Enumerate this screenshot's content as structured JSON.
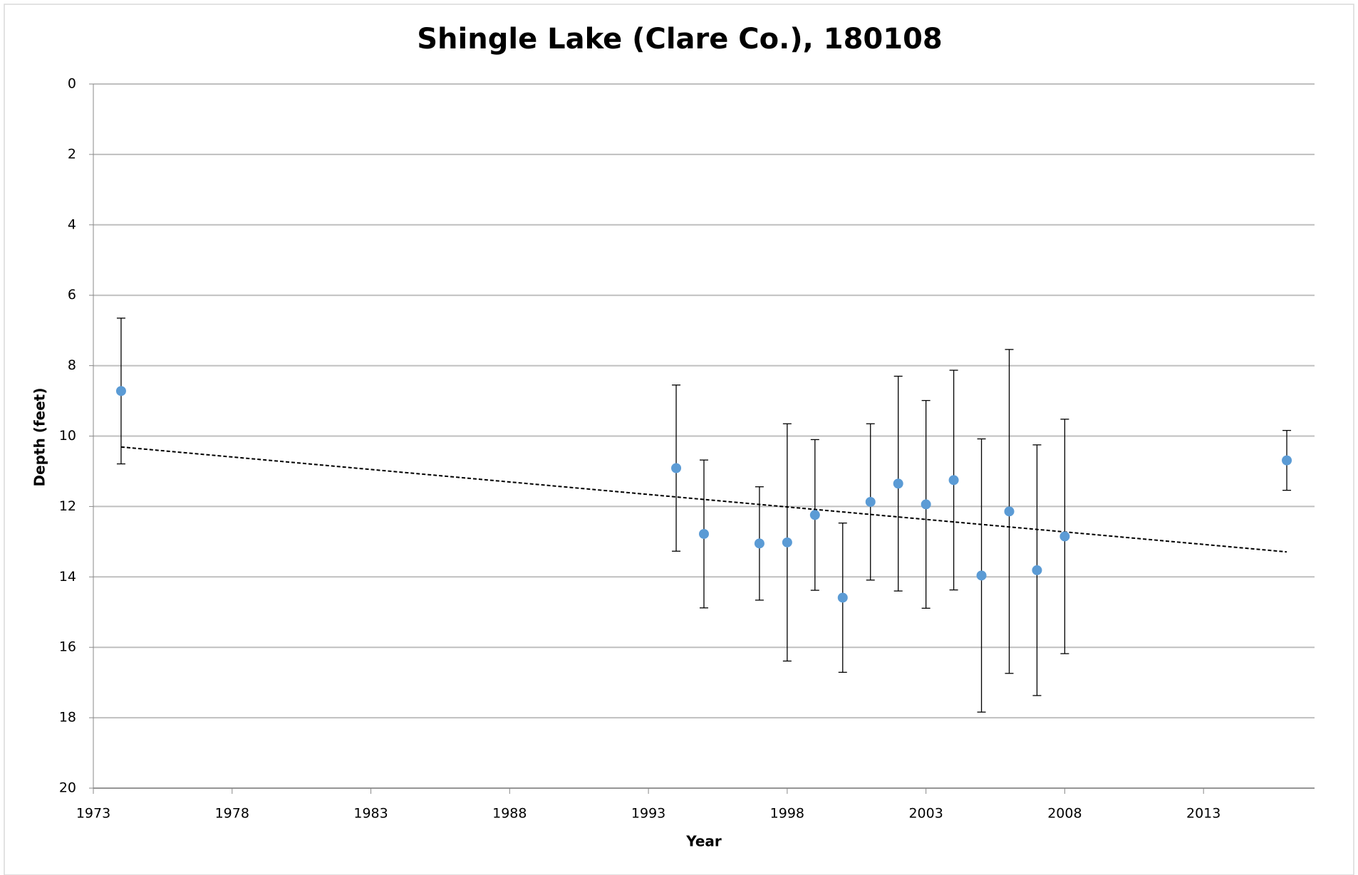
{
  "chart_data": {
    "type": "scatter",
    "title": "Shingle Lake (Clare Co.), 180108",
    "x_label": "Year",
    "y_label": "Depth (feet)",
    "xlim": [
      1973,
      2017
    ],
    "xticks": [
      1973,
      1978,
      1983,
      1988,
      1993,
      1998,
      2003,
      2008,
      2013
    ],
    "ylim": [
      20,
      0
    ],
    "yticks": [
      0,
      2,
      4,
      6,
      8,
      10,
      12,
      14,
      16,
      18,
      20
    ],
    "grid": true,
    "series": [
      {
        "color": "#5b9bd5",
        "x": [
          1974,
          1994,
          1995,
          1997,
          1998,
          1999,
          2000,
          2001,
          2002,
          2003,
          2004,
          2005,
          2006,
          2007,
          2008,
          2016
        ],
        "values": [
          8.72,
          10.91,
          12.78,
          13.05,
          13.02,
          12.24,
          14.59,
          11.87,
          11.35,
          11.94,
          11.25,
          13.96,
          12.14,
          13.81,
          12.85,
          10.69
        ],
        "errors": [
          2.07,
          2.36,
          2.1,
          1.61,
          3.37,
          2.14,
          2.12,
          2.22,
          3.05,
          2.95,
          3.12,
          3.88,
          4.6,
          3.56,
          3.33,
          0.85
        ]
      }
    ],
    "trendline": {
      "x": [
        1974,
        2016
      ],
      "values": [
        10.31,
        13.29
      ],
      "color": "#000000"
    }
  }
}
